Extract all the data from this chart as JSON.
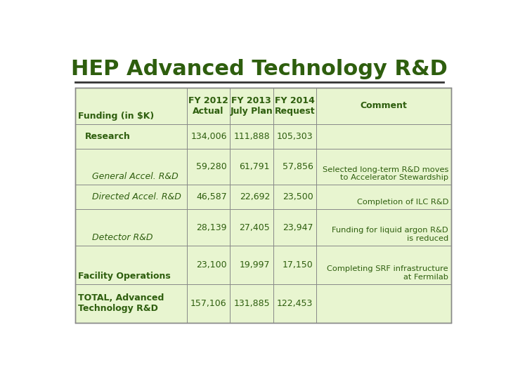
{
  "title": "HEP Advanced Technology R&D",
  "title_color": "#2E5E0E",
  "bg_color": "#FFFFFF",
  "table_bg": "#E8F5D0",
  "border_color": "#888888",
  "text_color": "#2E5E0E",
  "rows": [
    {
      "col0": "Funding (in $K)",
      "col0_bold": true,
      "col0_indent": 0,
      "col0_italic": false,
      "col0_valign": "bottom",
      "col1": "",
      "col2": "",
      "col3": "",
      "col4": "",
      "is_header_row": true
    },
    {
      "col0": "Research",
      "col0_bold": true,
      "col0_indent": 1,
      "col0_italic": false,
      "col0_valign": "center",
      "col1": "134,006",
      "col2": "111,888",
      "col3": "105,303",
      "col4": "",
      "is_header_row": false
    },
    {
      "col0": "General Accel. R&D",
      "col0_bold": false,
      "col0_indent": 2,
      "col0_italic": true,
      "col0_valign": "bottom",
      "col1": "59,280",
      "col2": "61,791",
      "col3": "57,856",
      "col4": "Selected long-term R&D moves\nto Accelerator Stewardship",
      "is_header_row": false
    },
    {
      "col0": "Directed Accel. R&D",
      "col0_bold": false,
      "col0_indent": 2,
      "col0_italic": true,
      "col0_valign": "center",
      "col1": "46,587",
      "col2": "22,692",
      "col3": "23,500",
      "col4": "Completion of ILC R&D",
      "is_header_row": false
    },
    {
      "col0": "Detector R&D",
      "col0_bold": false,
      "col0_indent": 2,
      "col0_italic": true,
      "col0_valign": "bottom",
      "col1": "28,139",
      "col2": "27,405",
      "col3": "23,947",
      "col4": "Funding for liquid argon R&D\nis reduced",
      "is_header_row": false
    },
    {
      "col0": "Facility Operations",
      "col0_bold": true,
      "col0_indent": 0,
      "col0_italic": false,
      "col0_valign": "bottom",
      "col1": "23,100",
      "col2": "19,997",
      "col3": "17,150",
      "col4": "Completing SRF infrastructure\nat Fermilab",
      "is_header_row": false
    },
    {
      "col0": "TOTAL, Advanced\nTechnology R&D",
      "col0_bold": true,
      "col0_indent": 0,
      "col0_italic": false,
      "col0_valign": "center",
      "col1": "157,106",
      "col2": "131,885",
      "col3": "122,453",
      "col4": "",
      "is_header_row": false
    }
  ]
}
